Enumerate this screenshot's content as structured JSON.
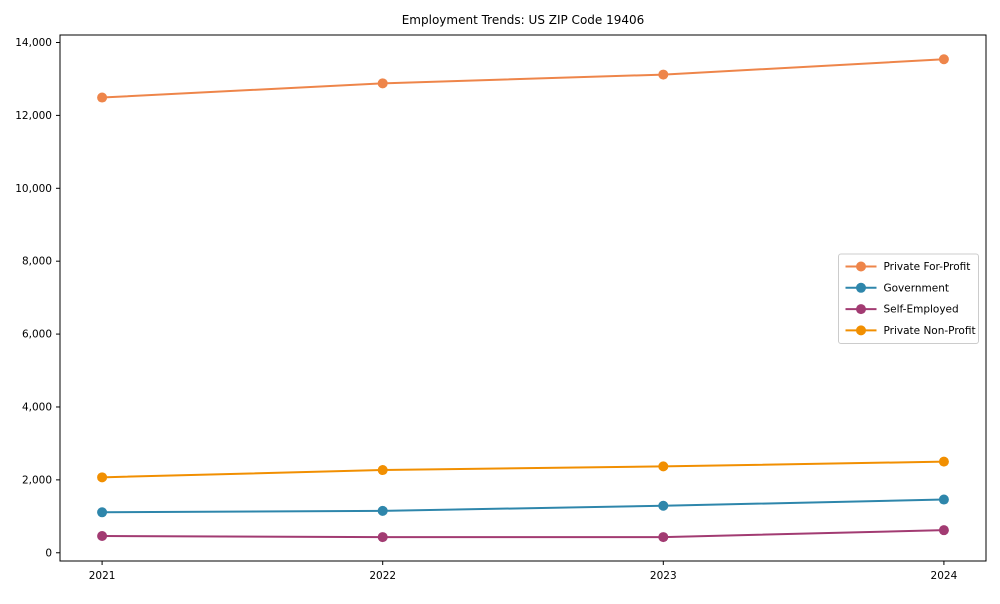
{
  "figure": {
    "background": "#ffffff",
    "spine_color": "#000000",
    "legend_border_color": "#cccccc",
    "legend_background": "#ffffff"
  },
  "chart_data": {
    "type": "line",
    "title": "Employment Trends: US ZIP Code 19406",
    "xlabel": "",
    "ylabel": "",
    "x": [
      2021,
      2022,
      2023,
      2024
    ],
    "x_tick_labels": [
      "2021",
      "2022",
      "2023",
      "2024"
    ],
    "yticks": [
      0,
      2000,
      4000,
      6000,
      8000,
      10000,
      12000,
      14000
    ],
    "ytick_labels": [
      "0",
      "2,000",
      "4,000",
      "6,000",
      "8,000",
      "10,000",
      "12,000",
      "14,000"
    ],
    "xlim": [
      2020.85,
      2024.15
    ],
    "ylim": [
      -226,
      14206
    ],
    "grid": false,
    "legend_position": "center-right",
    "marker": "circle",
    "series": [
      {
        "name": "Private For-Profit",
        "color": "#EE854A",
        "values": [
          12490,
          12880,
          13120,
          13540
        ]
      },
      {
        "name": "Government",
        "color": "#2E86AB",
        "values": [
          1110,
          1150,
          1290,
          1460
        ]
      },
      {
        "name": "Self-Employed",
        "color": "#A23B72",
        "values": [
          460,
          430,
          430,
          620
        ]
      },
      {
        "name": "Private Non-Profit",
        "color": "#F18F01",
        "values": [
          2070,
          2270,
          2370,
          2500
        ]
      }
    ]
  }
}
